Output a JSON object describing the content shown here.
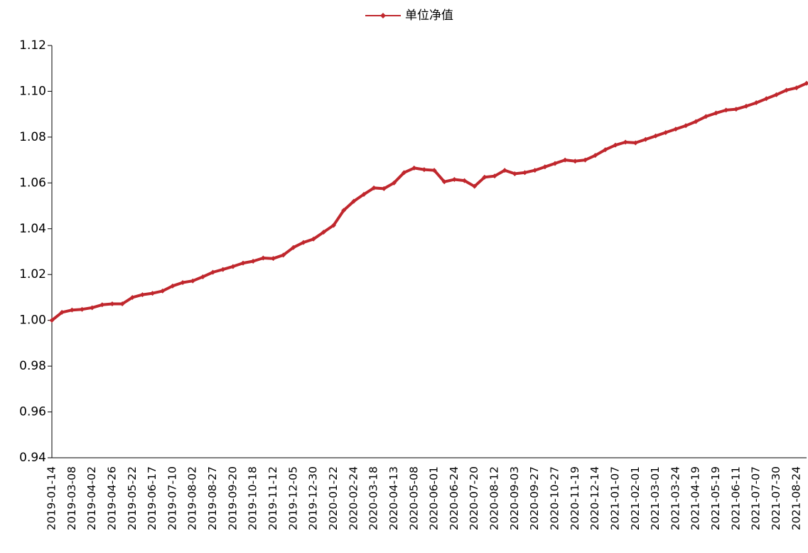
{
  "chart_data": {
    "type": "line",
    "categories": [
      "2019-01-14",
      null,
      "2019-03-08",
      null,
      "2019-04-02",
      null,
      "2019-04-26",
      null,
      "2019-05-22",
      null,
      "2019-06-17",
      null,
      "2019-07-10",
      null,
      "2019-08-02",
      null,
      "2019-08-27",
      null,
      "2019-09-20",
      null,
      "2019-10-18",
      null,
      "2019-11-12",
      null,
      "2019-12-05",
      null,
      "2019-12-30",
      null,
      "2020-01-22",
      null,
      "2020-02-24",
      null,
      "2020-03-18",
      null,
      "2020-04-13",
      null,
      "2020-05-08",
      null,
      "2020-06-01",
      null,
      "2020-06-24",
      null,
      "2020-07-20",
      null,
      "2020-08-12",
      null,
      "2020-09-03",
      null,
      "2020-09-27",
      null,
      "2020-10-27",
      null,
      "2020-11-19",
      null,
      "2020-12-14",
      null,
      "2021-01-07",
      null,
      "2021-02-01",
      null,
      "2021-03-01",
      null,
      "2021-03-24",
      null,
      "2021-04-19",
      null,
      "2021-05-19",
      null,
      "2021-06-11",
      null,
      "2021-07-07",
      null,
      "2021-07-30",
      null,
      "2021-08-24",
      null
    ],
    "series": [
      {
        "name": "单位净值",
        "color": "#c0272d",
        "values": [
          1.0,
          1.0035,
          1.0045,
          1.0048,
          1.0055,
          1.0068,
          1.0072,
          1.0072,
          1.01,
          1.0112,
          1.0118,
          1.0128,
          1.015,
          1.0165,
          1.0172,
          1.019,
          1.021,
          1.0222,
          1.0235,
          1.025,
          1.0258,
          1.0272,
          1.027,
          1.0285,
          1.0318,
          1.034,
          1.0355,
          1.0385,
          1.0415,
          1.048,
          1.052,
          1.055,
          1.0578,
          1.0575,
          1.06,
          1.0645,
          1.0665,
          1.0658,
          1.0655,
          1.0605,
          1.0615,
          1.061,
          1.0585,
          1.0625,
          1.063,
          1.0655,
          1.064,
          1.0645,
          1.0655,
          1.067,
          1.0685,
          1.07,
          1.0695,
          1.07,
          1.072,
          1.0745,
          1.0765,
          1.0778,
          1.0775,
          1.079,
          1.0805,
          1.082,
          1.0835,
          1.085,
          1.0868,
          1.089,
          1.0905,
          1.0918,
          1.0922,
          1.0935,
          1.095,
          1.0968,
          1.0985,
          1.1005,
          1.1015,
          1.1035
        ]
      }
    ],
    "ylim": [
      0.94,
      1.12
    ],
    "yticks": [
      0.94,
      0.96,
      0.98,
      {
        "value": 1,
        "label": "1.00"
      },
      1.02,
      1.04,
      1.06,
      1.08,
      {
        "value": 1.1,
        "label": "1.10"
      },
      1.12
    ],
    "grid": false,
    "legend": "top"
  }
}
